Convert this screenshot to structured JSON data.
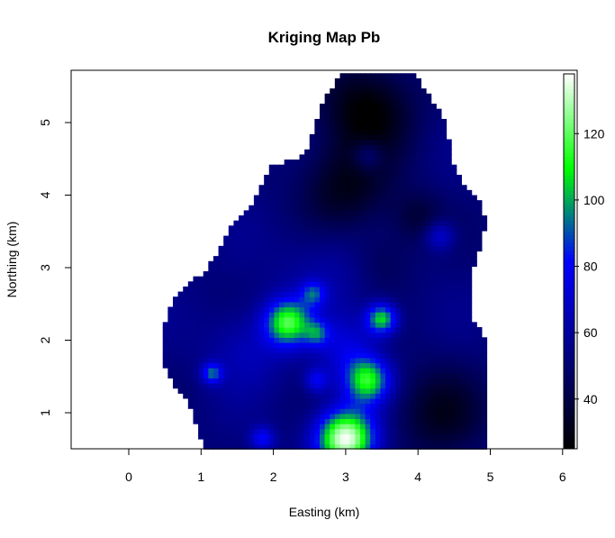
{
  "chart_data": {
    "type": "heatmap",
    "title": "Kriging Map Pb",
    "xlabel": "Easting (km)",
    "ylabel": "Northing (km)",
    "xlim": [
      -0.8,
      6.0
    ],
    "ylim": [
      0.5,
      5.7
    ],
    "x_ticks": [
      "0",
      "1",
      "2",
      "3",
      "4",
      "5",
      "6"
    ],
    "y_ticks": [
      "1",
      "2",
      "3",
      "4",
      "5"
    ],
    "colorbar": {
      "range": [
        25,
        138
      ],
      "ticks": [
        "40",
        "60",
        "80",
        "100",
        "120"
      ],
      "colors": [
        "#000000",
        "#000080",
        "#0000ff",
        "#00ff00",
        "#ffffff"
      ]
    },
    "region_outline_km": [
      [
        3.0,
        5.7
      ],
      [
        3.95,
        5.7
      ],
      [
        4.05,
        5.5
      ],
      [
        4.25,
        5.25
      ],
      [
        4.4,
        4.95
      ],
      [
        4.45,
        4.55
      ],
      [
        4.6,
        4.2
      ],
      [
        4.85,
        3.9
      ],
      [
        4.95,
        3.6
      ],
      [
        4.85,
        3.25
      ],
      [
        4.75,
        2.9
      ],
      [
        4.7,
        2.6
      ],
      [
        4.75,
        2.3
      ],
      [
        4.95,
        2.0
      ],
      [
        4.98,
        1.6
      ],
      [
        4.98,
        1.0
      ],
      [
        4.95,
        0.5
      ],
      [
        1.05,
        0.5
      ],
      [
        0.95,
        0.8
      ],
      [
        0.85,
        1.1
      ],
      [
        0.6,
        1.4
      ],
      [
        0.45,
        1.7
      ],
      [
        0.48,
        2.05
      ],
      [
        0.52,
        2.4
      ],
      [
        0.72,
        2.7
      ],
      [
        1.05,
        2.95
      ],
      [
        1.25,
        3.25
      ],
      [
        1.4,
        3.55
      ],
      [
        1.7,
        3.85
      ],
      [
        1.85,
        4.15
      ],
      [
        1.95,
        4.4
      ],
      [
        2.3,
        4.5
      ],
      [
        2.5,
        4.65
      ],
      [
        2.55,
        4.95
      ],
      [
        2.7,
        5.3
      ],
      [
        2.85,
        5.55
      ]
    ],
    "hotspots": [
      {
        "x": 3.0,
        "y": 0.65,
        "value": 138,
        "spread": 0.28
      },
      {
        "x": 3.3,
        "y": 1.45,
        "value": 110,
        "spread": 0.22
      },
      {
        "x": 2.2,
        "y": 2.25,
        "value": 112,
        "spread": 0.22
      },
      {
        "x": 3.5,
        "y": 2.3,
        "value": 108,
        "spread": 0.15
      },
      {
        "x": 2.55,
        "y": 2.65,
        "value": 82,
        "spread": 0.12
      },
      {
        "x": 1.15,
        "y": 1.55,
        "value": 90,
        "spread": 0.1
      },
      {
        "x": 1.85,
        "y": 0.65,
        "value": 80,
        "spread": 0.12
      },
      {
        "x": 2.6,
        "y": 1.45,
        "value": 78,
        "spread": 0.12
      },
      {
        "x": 4.3,
        "y": 3.45,
        "value": 75,
        "spread": 0.15
      },
      {
        "x": 2.6,
        "y": 2.1,
        "value": 80,
        "spread": 0.12
      },
      {
        "x": 3.3,
        "y": 4.55,
        "value": 70,
        "spread": 0.15
      },
      {
        "x": 3.0,
        "y": 1.9,
        "value": 72,
        "spread": 0.3
      },
      {
        "x": 1.65,
        "y": 1.9,
        "value": 66,
        "spread": 0.4
      },
      {
        "x": 2.75,
        "y": 3.0,
        "value": 62,
        "spread": 0.5
      }
    ],
    "lowspots": [
      {
        "x": 3.3,
        "y": 5.2,
        "value": 25,
        "spread": 0.45
      },
      {
        "x": 3.0,
        "y": 4.1,
        "value": 30,
        "spread": 0.45
      },
      {
        "x": 4.3,
        "y": 1.0,
        "value": 33,
        "spread": 0.45
      },
      {
        "x": 4.0,
        "y": 3.7,
        "value": 38,
        "spread": 0.25
      },
      {
        "x": 3.5,
        "y": 3.1,
        "value": 42,
        "spread": 0.3
      }
    ]
  }
}
